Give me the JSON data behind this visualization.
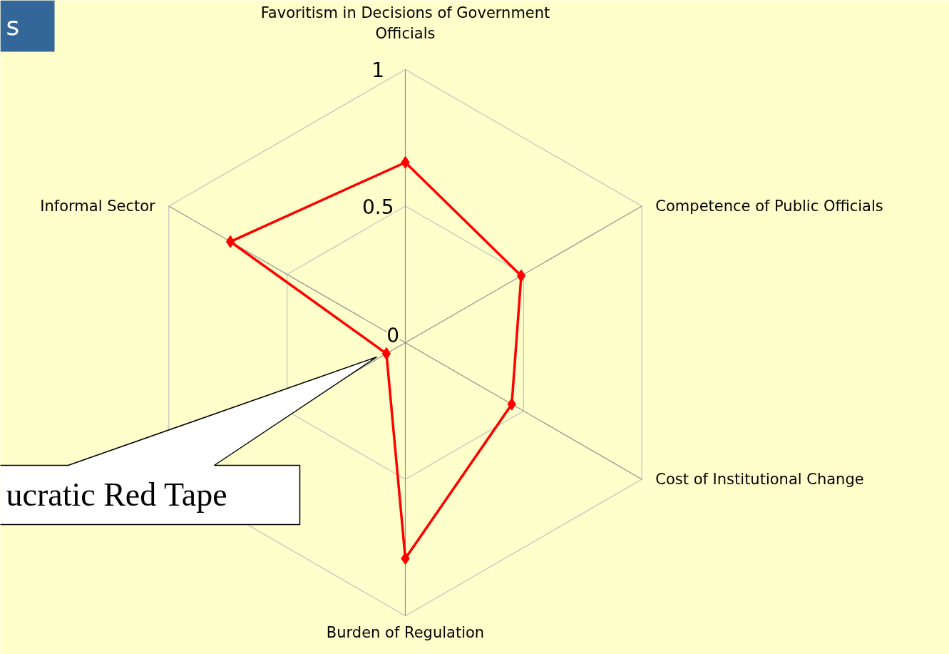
{
  "chart_data": {
    "type": "radar",
    "title": "s",
    "categories": [
      "Favoritism in Decisions of Government Officials",
      "Competence of Public Officials",
      "Cost of Institutional Change",
      "Burden of Regulation",
      "ucratic Red Tape",
      "Informal Sector"
    ],
    "series": [
      {
        "color": "#ff0000",
        "values": [
          0.66,
          0.49,
          0.45,
          0.79,
          0.08,
          0.74
        ]
      }
    ],
    "ylim": [
      0,
      1
    ],
    "yticks": [
      0,
      0.5,
      1
    ],
    "grid": true,
    "marker": "diamond",
    "line_style": "solid"
  }
}
